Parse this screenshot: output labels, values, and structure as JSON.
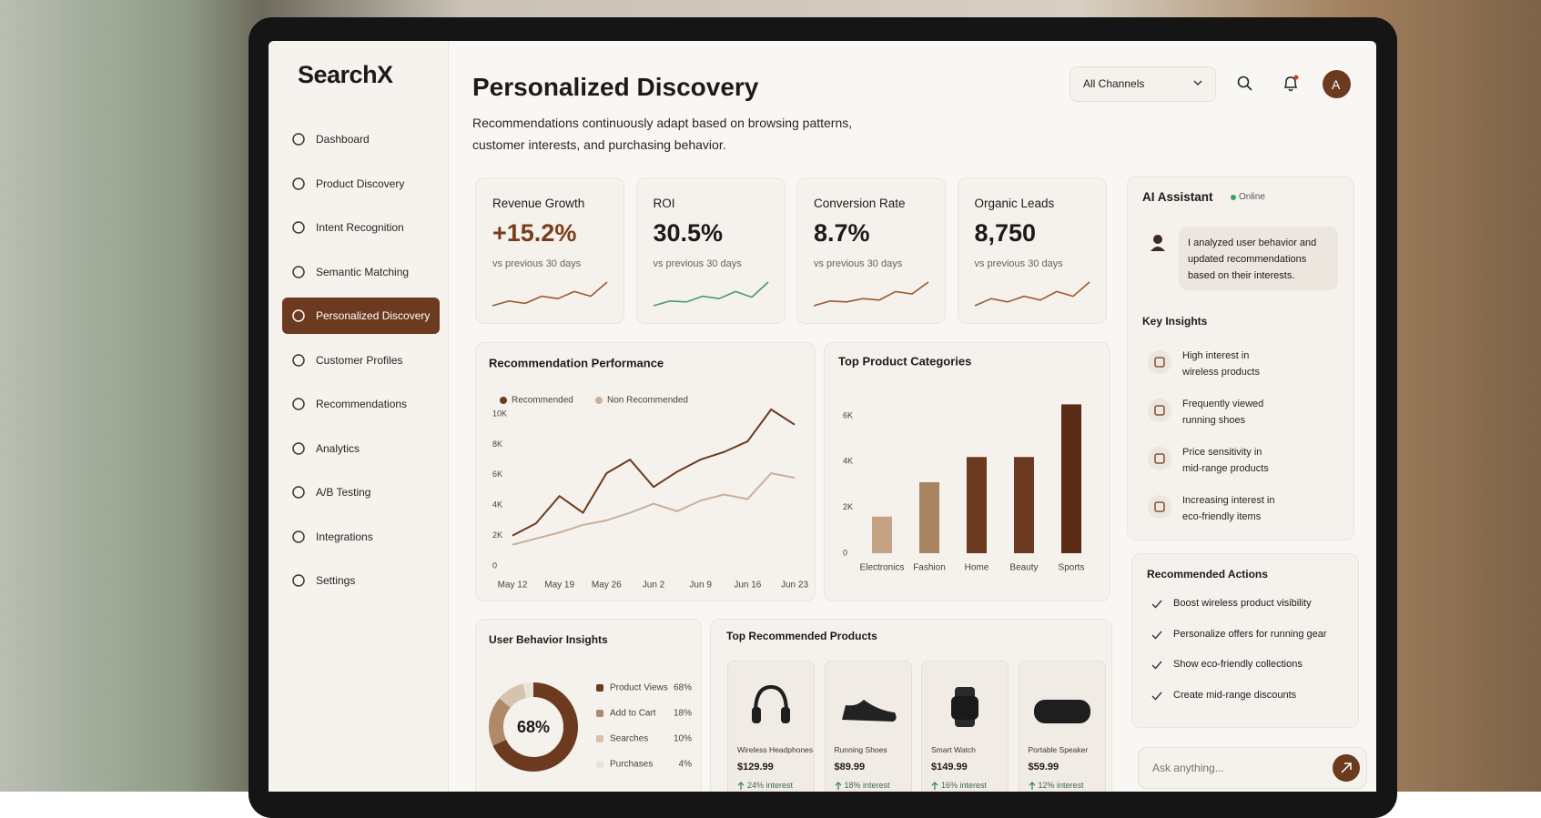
{
  "brand": "SearchX",
  "nav": {
    "items": [
      "Dashboard",
      "Product Discovery",
      "Intent Recognition",
      "Semantic Matching",
      "Personalized Discovery",
      "Customer Profiles",
      "Recommendations",
      "Analytics",
      "A/B Testing",
      "Integrations",
      "Settings"
    ],
    "active": 4
  },
  "header": {
    "title": "Personalized Discovery",
    "subtitle": "Recommendations continuously adapt based on browsing patterns, customer interests, and purchasing behavior.",
    "channel_select": "All Channels",
    "avatar": "A"
  },
  "kpis": [
    {
      "label": "Revenue Growth",
      "value": "+15.2%",
      "note": "vs previous 30 days",
      "value_color": "#7a3d1a",
      "trend": [
        2,
        3,
        2.5,
        4,
        3.5,
        5,
        4,
        7
      ],
      "trend_color": "#9a5a34"
    },
    {
      "label": "ROI",
      "value": "30.5%",
      "note": "vs previous 30 days",
      "value_color": "#1f1a17",
      "trend": [
        2,
        3,
        2.8,
        4,
        3.5,
        5,
        3.8,
        7
      ],
      "trend_color": "#4a9a6a"
    },
    {
      "label": "Conversion Rate",
      "value": "8.7%",
      "note": "vs previous 30 days",
      "value_color": "#1f1a17",
      "trend": [
        2,
        3,
        2.8,
        3.5,
        3.2,
        5,
        4.5,
        7
      ],
      "trend_color": "#9a5a34"
    },
    {
      "label": "Organic Leads",
      "value": "8,750",
      "note": "vs previous 30 days",
      "value_color": "#1f1a17",
      "trend": [
        2,
        3.5,
        2.8,
        4,
        3.2,
        5,
        4,
        7
      ],
      "trend_color": "#9a5a34"
    }
  ],
  "chart_data": [
    {
      "type": "line",
      "title": "Recommendation Performance",
      "legend": "top",
      "categories": [
        "May 12",
        null,
        "May 19",
        null,
        "May 26",
        null,
        "Jun 2",
        null,
        "Jun 9",
        null,
        "Jun 16",
        null,
        "Jun 23"
      ],
      "series": [
        {
          "name": "Recommended",
          "color": "#6b3a1f",
          "values": [
            2000,
            2800,
            4600,
            3500,
            6100,
            7000,
            5200,
            6200,
            7000,
            7500,
            8200,
            10300,
            9300
          ]
        },
        {
          "name": "Non Recommended",
          "color": "#c9b09a",
          "values": [
            1400,
            1800,
            2200,
            2700,
            3000,
            3500,
            4100,
            3600,
            4300,
            4700,
            4400,
            6100,
            5800
          ]
        }
      ],
      "ylim": [
        0,
        11000
      ],
      "yticks": [
        0,
        {
          "value": 2000,
          "label": "2K"
        },
        {
          "value": 4000,
          "label": "4K"
        },
        {
          "value": 6000,
          "label": "6K"
        },
        {
          "value": 8000,
          "label": "8K"
        },
        {
          "value": 10000,
          "label": "10K"
        }
      ],
      "grid": false
    },
    {
      "type": "bar",
      "title": "Top Product Categories",
      "categories": [
        "Electronics",
        "Fashion",
        "Home",
        "Beauty",
        "Sports"
      ],
      "values": [
        1600,
        3100,
        4200,
        4200,
        6500
      ],
      "colors": [
        "#c4a384",
        "#a88463",
        "#6b3a1f",
        "#6b3a1f",
        "#5a2c16"
      ],
      "ylim": [
        0,
        7000
      ],
      "yticks": [
        0,
        {
          "value": 2000,
          "label": "2K"
        },
        {
          "value": 4000,
          "label": "4K"
        },
        {
          "value": 6000,
          "label": "6K"
        }
      ],
      "grid": false
    },
    {
      "type": "donut",
      "title": "User Behavior Insights",
      "categories": [
        "Product Views",
        "Add to Cart",
        "Searches",
        "Purchases"
      ],
      "values": [
        68,
        18,
        10,
        4
      ],
      "value_labels": [
        "68%",
        "18%",
        "10%",
        "4%"
      ],
      "colors": [
        "#6b3a1f",
        "#b08968",
        "#d6c3ae",
        "#ece3d8"
      ]
    }
  ],
  "products": {
    "title": "Top Recommended Products",
    "items": [
      {
        "name": "Wireless Headphones",
        "price": "$129.99",
        "interest": "24% interest"
      },
      {
        "name": "Running Shoes",
        "price": "$89.99",
        "interest": "18% interest"
      },
      {
        "name": "Smart Watch",
        "price": "$149.99",
        "interest": "16% interest"
      },
      {
        "name": "Portable Speaker",
        "price": "$59.99",
        "interest": "12% interest"
      }
    ]
  },
  "assistant": {
    "title": "AI Assistant",
    "status": "Online",
    "message": "I analyzed user behavior and updated recommendations based on their interests.",
    "insights_title": "Key Insights",
    "insights": [
      "High interest in wireless products",
      "Frequently viewed running shoes",
      "Price sensitivity in mid-range products",
      "Increasing interest in eco-friendly items"
    ],
    "actions_title": "Recommended Actions",
    "actions": [
      "Boost wireless product visibility",
      "Personalize offers for running gear",
      "Show eco-friendly collections",
      "Create mid-range discounts"
    ],
    "input_placeholder": "Ask anything..."
  }
}
